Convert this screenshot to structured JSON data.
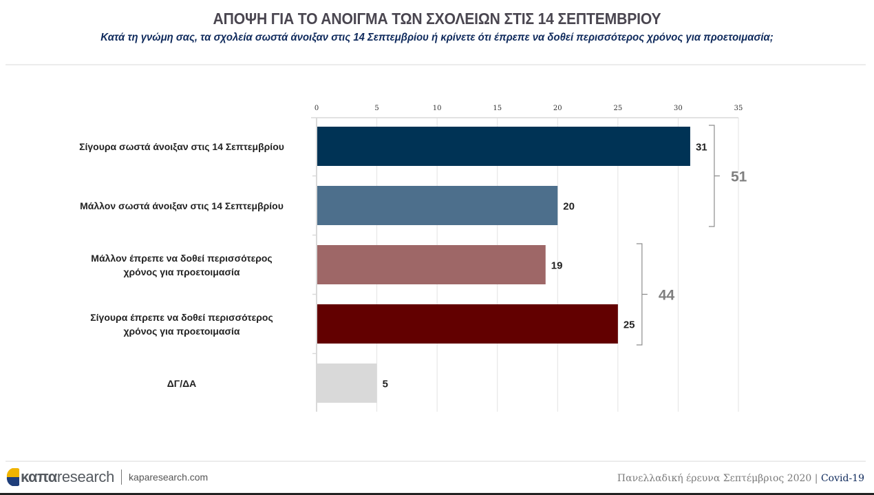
{
  "header": {
    "title": "ΑΠΟΨΗ ΓΙΑ ΤΟ ΑΝΟΙΓΜΑ ΤΩΝ ΣΧΟΛΕΙΩΝ ΣΤΙΣ 14 ΣΕΠΤΕΜΒΡΙΟΥ",
    "subtitle": "Κατά τη γνώμη σας, τα σχολεία σωστά άνοιξαν στις 14 Σεπτεμβρίου ή κρίνετε ότι έπρεπε να δοθεί περισσότερος χρόνος για προετοιμασία;"
  },
  "chart_data": {
    "type": "bar",
    "orientation": "horizontal",
    "title": "ΑΠΟΨΗ ΓΙΑ ΤΟ ΑΝΟΙΓΜΑ ΤΩΝ ΣΧΟΛΕΙΩΝ ΣΤΙΣ 14 ΣΕΠΤΕΜΒΡΙΟΥ",
    "categories": [
      [
        "Σίγουρα σωστά άνοιξαν στις 14 Σεπτεμβρίου"
      ],
      [
        "Μάλλον σωστά άνοιξαν στις 14 Σεπτεμβρίου"
      ],
      [
        "Μάλλον έπρεπε να δοθεί περισσότερος",
        "χρόνος για προετοιμασία"
      ],
      [
        "Σίγουρα έπρεπε να δοθεί περισσότερος",
        "χρόνος για προετοιμασία"
      ],
      [
        "ΔΓ/ΔΑ"
      ]
    ],
    "values": [
      31,
      20,
      19,
      25,
      5
    ],
    "colors": [
      "#003355",
      "#4d6f8c",
      "#9e6767",
      "#620000",
      "#d9d9d9"
    ],
    "xlim": [
      0,
      35
    ],
    "xticks": [
      0,
      5,
      10,
      15,
      20,
      25,
      30,
      35
    ],
    "xtick_labels": [
      "0",
      "5",
      "10",
      "15",
      "20",
      "25",
      "30",
      "35"
    ],
    "grid": true,
    "axis_position": "top",
    "groups": [
      {
        "from": 0,
        "to": 1,
        "total": "51"
      },
      {
        "from": 2,
        "to": 3,
        "total": "44"
      }
    ],
    "label_color": "#222222",
    "group_color": "#7f7f7f",
    "grid_color": "#e3e3e3"
  },
  "footer": {
    "brand_bold": "καπα",
    "brand_light": "research",
    "website": "kaparesearch.com",
    "survey": "Πανελλαδική έρευνα Σεπτέμβριος 2020",
    "separator": "|",
    "tag": "Covid-19",
    "logo_colors": [
      "#f0b400",
      "#1f3e7a"
    ]
  }
}
